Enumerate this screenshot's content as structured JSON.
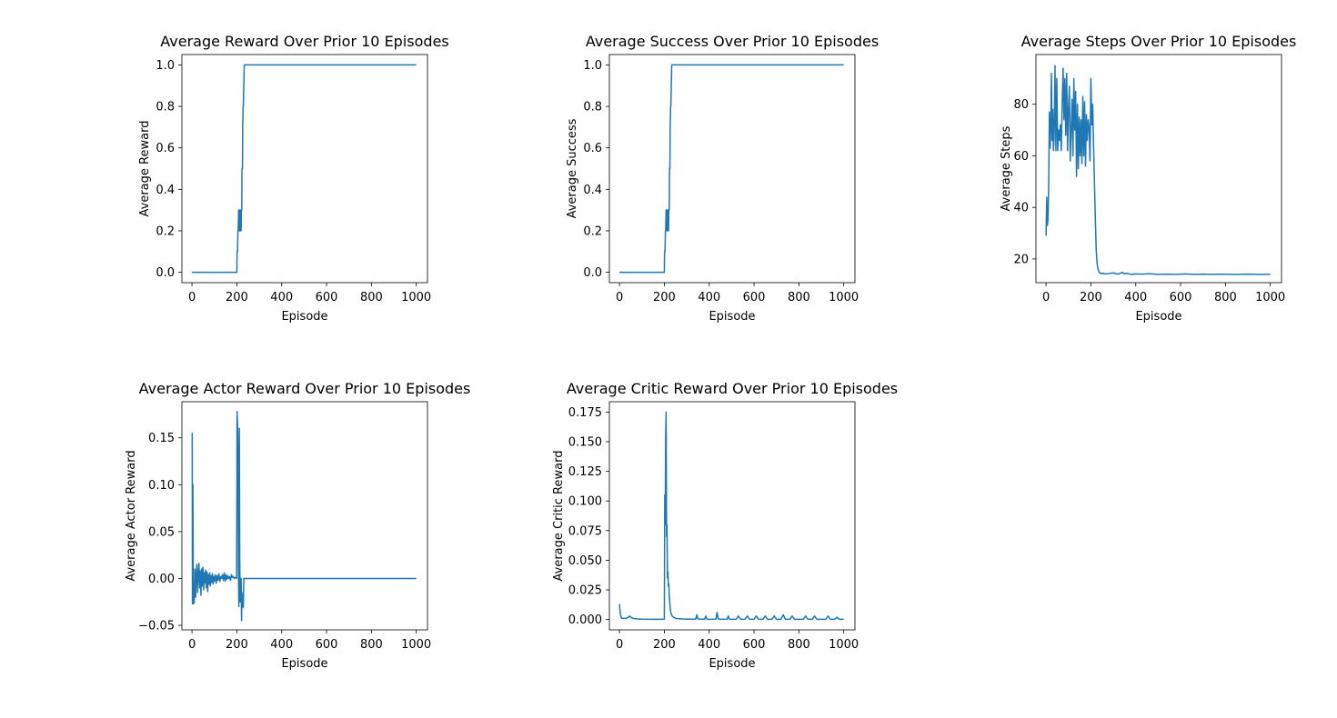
{
  "line_color": "#1f77b4",
  "chart_data": [
    {
      "type": "line",
      "title": "Average Reward Over Prior 10 Episodes",
      "xlabel": "Episode",
      "ylabel": "Average Reward",
      "xlim": [
        -45,
        1050
      ],
      "ylim": [
        -0.05,
        1.05
      ],
      "xticks": [
        0,
        200,
        400,
        600,
        800,
        1000
      ],
      "yticks": [
        0.0,
        0.2,
        0.4,
        0.6,
        0.8,
        1.0
      ],
      "ytick_labels": [
        "0.0",
        "0.2",
        "0.4",
        "0.6",
        "0.8",
        "1.0"
      ],
      "xtick_labels": [
        "0",
        "200",
        "400",
        "600",
        "800",
        "1000"
      ],
      "series": [
        {
          "x": [
            0,
            200,
            201,
            203,
            205,
            206,
            208,
            210,
            212,
            214,
            215,
            217,
            219,
            220,
            222,
            223,
            225,
            226,
            228,
            229,
            231,
            233,
            240,
            300,
            400,
            500,
            600,
            700,
            800,
            900,
            1000
          ],
          "y": [
            0,
            0,
            0.1,
            0.1,
            0.2,
            0.2,
            0.3,
            0.3,
            0.2,
            0.2,
            0.3,
            0.3,
            0.2,
            0.3,
            0.3,
            0.5,
            0.5,
            0.7,
            0.8,
            0.8,
            0.9,
            1.0,
            1.0,
            1.0,
            1.0,
            1.0,
            1.0,
            1.0,
            1.0,
            1.0,
            1.0
          ]
        }
      ]
    },
    {
      "type": "line",
      "title": "Average Success Over Prior 10 Episodes",
      "xlabel": "Episode",
      "ylabel": "Average Success",
      "xlim": [
        -45,
        1050
      ],
      "ylim": [
        -0.05,
        1.05
      ],
      "xticks": [
        0,
        200,
        400,
        600,
        800,
        1000
      ],
      "yticks": [
        0.0,
        0.2,
        0.4,
        0.6,
        0.8,
        1.0
      ],
      "ytick_labels": [
        "0.0",
        "0.2",
        "0.4",
        "0.6",
        "0.8",
        "1.0"
      ],
      "xtick_labels": [
        "0",
        "200",
        "400",
        "600",
        "800",
        "1000"
      ],
      "series": [
        {
          "x": [
            0,
            200,
            201,
            203,
            205,
            206,
            208,
            210,
            212,
            214,
            215,
            217,
            219,
            220,
            222,
            223,
            225,
            226,
            228,
            229,
            231,
            233,
            240,
            300,
            400,
            500,
            600,
            700,
            800,
            900,
            1000
          ],
          "y": [
            0,
            0,
            0.1,
            0.1,
            0.2,
            0.2,
            0.3,
            0.3,
            0.2,
            0.2,
            0.3,
            0.3,
            0.2,
            0.3,
            0.3,
            0.5,
            0.5,
            0.7,
            0.8,
            0.8,
            0.9,
            1.0,
            1.0,
            1.0,
            1.0,
            1.0,
            1.0,
            1.0,
            1.0,
            1.0,
            1.0
          ]
        }
      ]
    },
    {
      "type": "line",
      "title": "Average Steps Over Prior 10 Episodes",
      "xlabel": "Episode",
      "ylabel": "Average Steps",
      "xlim": [
        -45,
        1050
      ],
      "ylim": [
        10.8,
        99.3
      ],
      "xticks": [
        0,
        200,
        400,
        600,
        800,
        1000
      ],
      "yticks": [
        20,
        40,
        60,
        80
      ],
      "ytick_labels": [
        "20",
        "40",
        "60",
        "80"
      ],
      "xtick_labels": [
        "0",
        "200",
        "400",
        "600",
        "800",
        "1000"
      ],
      "series": [
        {
          "x": [
            0,
            3,
            6,
            9,
            12,
            15,
            18,
            21,
            24,
            27,
            30,
            33,
            36,
            40,
            44,
            48,
            52,
            56,
            60,
            64,
            68,
            72,
            76,
            80,
            84,
            88,
            92,
            96,
            100,
            104,
            108,
            112,
            116,
            120,
            124,
            128,
            132,
            136,
            140,
            144,
            148,
            152,
            156,
            160,
            164,
            168,
            172,
            176,
            180,
            184,
            188,
            192,
            196,
            200,
            204,
            208,
            212,
            216,
            220,
            224,
            228,
            232,
            236,
            240,
            244,
            248,
            252,
            260,
            280,
            300,
            320,
            340,
            350,
            360,
            380,
            400,
            430,
            460,
            500,
            540,
            580,
            620,
            660,
            700,
            740,
            780,
            820,
            860,
            900,
            940,
            980,
            1000
          ],
          "y": [
            29,
            44,
            33,
            36,
            50,
            77,
            63,
            70,
            92,
            66,
            78,
            62,
            67,
            95,
            62,
            90,
            62,
            70,
            66,
            72,
            62,
            80,
            94,
            74,
            90,
            68,
            92,
            62,
            78,
            87,
            58,
            70,
            82,
            60,
            90,
            70,
            85,
            52,
            80,
            55,
            75,
            60,
            74,
            57,
            83,
            60,
            81,
            56,
            76,
            66,
            74,
            71,
            58,
            90,
            72,
            80,
            64,
            49,
            35,
            23,
            18,
            16,
            15,
            14.5,
            14.5,
            14.3,
            14.5,
            14.2,
            14.3,
            14.6,
            14.1,
            14.8,
            14.2,
            14.4,
            14.0,
            14.2,
            14.1,
            14.3,
            14.0,
            14.1,
            14.0,
            14.2,
            14.0,
            14.1,
            14.0,
            14.1,
            14.0,
            14.0,
            14.1,
            14.0,
            14.0,
            14.0
          ]
        }
      ]
    },
    {
      "type": "line",
      "title": "Average Actor Reward Over Prior 10 Episodes",
      "xlabel": "Episode",
      "ylabel": "Average Actor Reward",
      "xlim": [
        -45,
        1050
      ],
      "ylim": [
        -0.0548,
        0.1885
      ],
      "xticks": [
        0,
        200,
        400,
        600,
        800,
        1000
      ],
      "yticks": [
        -0.05,
        0.0,
        0.05,
        0.1,
        0.15
      ],
      "ytick_labels": [
        "−0.05",
        "0.00",
        "0.05",
        "0.10",
        "0.15"
      ],
      "xtick_labels": [
        "0",
        "200",
        "400",
        "600",
        "800",
        "1000"
      ],
      "series": [
        {
          "x": [
            0,
            1,
            2,
            4,
            6,
            8,
            10,
            13,
            16,
            19,
            22,
            25,
            28,
            31,
            34,
            37,
            40,
            43,
            46,
            49,
            52,
            55,
            58,
            61,
            64,
            67,
            70,
            73,
            76,
            79,
            82,
            85,
            88,
            91,
            94,
            97,
            100,
            104,
            108,
            112,
            116,
            120,
            124,
            128,
            132,
            136,
            140,
            144,
            148,
            152,
            156,
            160,
            164,
            168,
            172,
            176,
            180,
            184,
            188,
            192,
            196,
            199,
            201,
            203,
            205,
            207,
            209,
            211,
            213,
            215,
            217,
            219,
            221,
            223,
            225,
            227,
            229,
            231,
            240,
            300,
            400,
            500,
            600,
            700,
            800,
            900,
            1000
          ],
          "y": [
            0.155,
            0.155,
            -0.027,
            0.1,
            -0.027,
            -0.01,
            -0.026,
            0.01,
            -0.02,
            0.005,
            0.015,
            -0.015,
            0.005,
            0.016,
            -0.01,
            0.008,
            -0.018,
            0.01,
            -0.008,
            0.012,
            -0.012,
            0.006,
            -0.005,
            0.009,
            -0.01,
            0.007,
            -0.014,
            0.004,
            -0.006,
            0.006,
            -0.008,
            0.003,
            -0.004,
            0.005,
            -0.006,
            0.002,
            -0.003,
            0.004,
            -0.005,
            0.003,
            -0.002,
            0.005,
            -0.003,
            0.002,
            0.0,
            0.004,
            -0.002,
            0.006,
            -0.003,
            0.004,
            -0.001,
            0.003,
            0.0,
            0.002,
            -0.002,
            0.004,
            0.001,
            0.002,
            0.0,
            0.001,
            0.001,
            0.0,
            0.178,
            0.165,
            0.14,
            0.01,
            -0.03,
            0.16,
            0.02,
            -0.025,
            -0.01,
            0.0,
            -0.045,
            -0.015,
            -0.03,
            -0.02,
            -0.031,
            0.0,
            0.0,
            0.0,
            0.0,
            0.0,
            0.0,
            0.0,
            0.0,
            0.0,
            0.0
          ]
        }
      ]
    },
    {
      "type": "line",
      "title": "Average Critic Reward Over Prior 10 Episodes",
      "xlabel": "Episode",
      "ylabel": "Average Critic Reward",
      "xlim": [
        -45,
        1050
      ],
      "ylim": [
        -0.0087,
        0.1837
      ],
      "xticks": [
        0,
        200,
        400,
        600,
        800,
        1000
      ],
      "yticks": [
        0.0,
        0.025,
        0.05,
        0.075,
        0.1,
        0.125,
        0.15,
        0.175
      ],
      "ytick_labels": [
        "0.000",
        "0.025",
        "0.050",
        "0.075",
        "0.100",
        "0.125",
        "0.150",
        "0.175"
      ],
      "xtick_labels": [
        "0",
        "200",
        "400",
        "600",
        "800",
        "1000"
      ],
      "series": [
        {
          "x": [
            0,
            2,
            4,
            6,
            8,
            10,
            15,
            20,
            30,
            40,
            45,
            50,
            60,
            80,
            100,
            150,
            199,
            200,
            202,
            204,
            206,
            208,
            210,
            212,
            214,
            216,
            218,
            220,
            222,
            224,
            226,
            228,
            230,
            235,
            240,
            250,
            260,
            280,
            300,
            340,
            345,
            350,
            360,
            380,
            385,
            390,
            400,
            430,
            435,
            440,
            450,
            480,
            485,
            490,
            520,
            530,
            540,
            560,
            570,
            580,
            600,
            610,
            620,
            640,
            650,
            660,
            680,
            690,
            700,
            720,
            730,
            740,
            760,
            770,
            780,
            800,
            820,
            830,
            840,
            860,
            870,
            880,
            900,
            920,
            930,
            940,
            960,
            970,
            980,
            1000
          ],
          "y": [
            0.013,
            0.008,
            0.005,
            0.003,
            0.002,
            0.001,
            0.001,
            0.001,
            0.001,
            0.002,
            0.003,
            0.002,
            0.001,
            0.0005,
            0.0003,
            0.0002,
            0.0002,
            0.0005,
            0.105,
            0.08,
            0.155,
            0.175,
            0.07,
            0.08,
            0.035,
            0.04,
            0.028,
            0.03,
            0.02,
            0.015,
            0.01,
            0.007,
            0.005,
            0.003,
            0.002,
            0.001,
            0.0008,
            0.0005,
            0.0003,
            0.0003,
            0.004,
            0.0005,
            0.0003,
            0.0003,
            0.003,
            0.0003,
            0.0002,
            0.0003,
            0.006,
            0.0005,
            0.0002,
            0.0003,
            0.003,
            0.0003,
            0.0002,
            0.003,
            0.0002,
            0.0002,
            0.003,
            0.0002,
            0.0002,
            0.003,
            0.0002,
            0.0002,
            0.003,
            0.0002,
            0.0002,
            0.003,
            0.0002,
            0.0002,
            0.004,
            0.0002,
            0.0002,
            0.003,
            0.0002,
            0.0002,
            0.0002,
            0.003,
            0.0002,
            0.0002,
            0.003,
            0.0002,
            0.0002,
            0.0002,
            0.003,
            0.0002,
            0.0002,
            0.002,
            0.0002,
            0.0002
          ]
        }
      ]
    }
  ]
}
